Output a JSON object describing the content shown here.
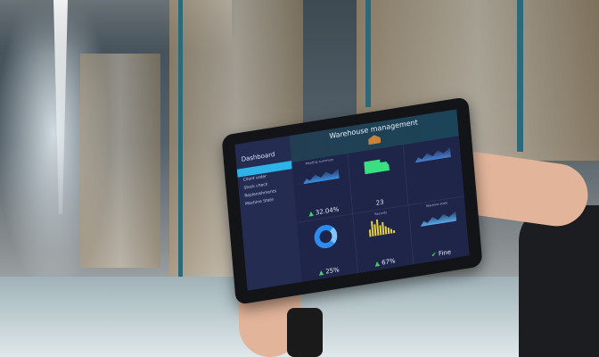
{
  "tablet": {
    "header": {
      "title": "Warehouse management",
      "icon": "warehouse-icon"
    },
    "sidebar": {
      "title": "Dashboard",
      "items": [
        {
          "label": "Client order"
        },
        {
          "label": "Stock check"
        },
        {
          "label": "Replenishments"
        },
        {
          "label": "Machine State"
        }
      ]
    },
    "widgets": {
      "monthly": {
        "label": "Monthly summary",
        "value": "32.04%"
      },
      "trucks": {
        "value": "23",
        "icon": "truck-icon"
      },
      "donut": {
        "value": "25%"
      },
      "records": {
        "label": "Records",
        "value": "67%"
      },
      "machine": {
        "label": "Machine state",
        "value": "Fine"
      }
    },
    "colors": {
      "accent": "#2db3e8",
      "positive": "#3ecf6a",
      "truck": "#39e07f",
      "bars": "#e8d33a"
    }
  }
}
